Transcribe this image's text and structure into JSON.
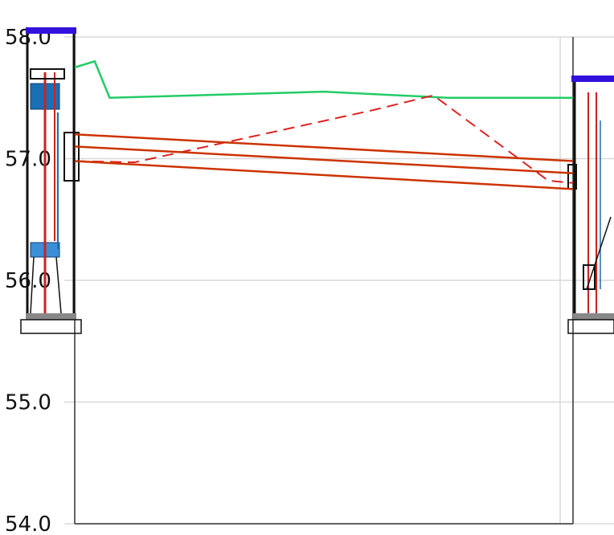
{
  "chart_data": {
    "type": "line",
    "title": "",
    "xlabel": "",
    "ylabel": "",
    "ylim": [
      54.0,
      58.0
    ],
    "grid": true,
    "y_ticks": [
      "54.0",
      "55.0",
      "56.0",
      "57.0",
      "58.0"
    ],
    "structures": [
      {
        "name": "",
        "role": "left-chamber",
        "top_level": 58.05,
        "floor_level": 55.7
      },
      {
        "name": "",
        "role": "right-chamber",
        "top_level": 57.65,
        "floor_level": 55.7
      }
    ],
    "series": [
      {
        "name": "",
        "style": "solid",
        "color": "#22cc66",
        "points": [
          [
            0.0,
            57.75
          ],
          [
            0.04,
            57.8
          ],
          [
            0.07,
            57.5
          ],
          [
            0.5,
            57.55
          ],
          [
            0.75,
            57.5
          ],
          [
            1.0,
            57.5
          ]
        ]
      },
      {
        "name": "",
        "style": "dashed",
        "color": "#dd2222",
        "points": [
          [
            0.0,
            56.98
          ],
          [
            0.12,
            56.97
          ],
          [
            0.6,
            57.4
          ],
          [
            0.72,
            57.52
          ],
          [
            0.95,
            56.82
          ],
          [
            1.0,
            56.8
          ]
        ]
      },
      {
        "name": "",
        "style": "solid",
        "color": "#cc3300",
        "points": [
          [
            0.0,
            57.2
          ],
          [
            1.0,
            56.98
          ]
        ]
      },
      {
        "name": "",
        "style": "solid",
        "color": "#cc3300",
        "points": [
          [
            0.0,
            57.1
          ],
          [
            1.0,
            56.88
          ]
        ]
      },
      {
        "name": "",
        "style": "solid",
        "color": "#cc3300",
        "points": [
          [
            0.0,
            56.98
          ],
          [
            1.0,
            56.75
          ]
        ]
      }
    ]
  }
}
